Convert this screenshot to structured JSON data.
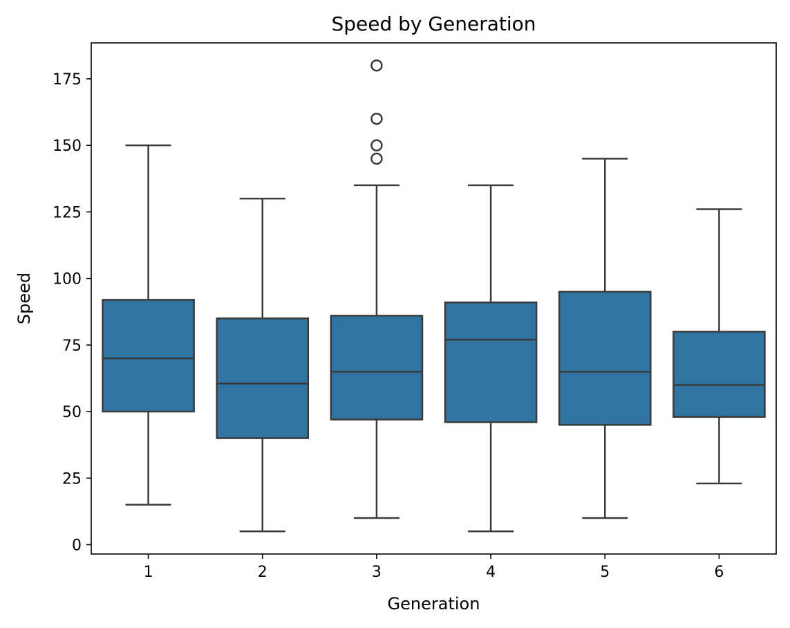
{
  "chart_data": {
    "type": "box",
    "title": "Speed by Generation",
    "xlabel": "Generation",
    "ylabel": "Speed",
    "categories": [
      "1",
      "2",
      "3",
      "4",
      "5",
      "6"
    ],
    "ylim": [
      -3.5,
      188.5
    ],
    "yticks": [
      0,
      25,
      50,
      75,
      100,
      125,
      150,
      175
    ],
    "boxes": [
      {
        "category": "1",
        "whisker_low": 15,
        "q1": 50,
        "median": 70,
        "q3": 92,
        "whisker_high": 150,
        "fliers": []
      },
      {
        "category": "2",
        "whisker_low": 5,
        "q1": 40,
        "median": 60.5,
        "q3": 85,
        "whisker_high": 130,
        "fliers": []
      },
      {
        "category": "3",
        "whisker_low": 10,
        "q1": 47,
        "median": 65,
        "q3": 86,
        "whisker_high": 135,
        "fliers": [
          145,
          150,
          160,
          180
        ]
      },
      {
        "category": "4",
        "whisker_low": 5,
        "q1": 46,
        "median": 77,
        "q3": 91,
        "whisker_high": 135,
        "fliers": []
      },
      {
        "category": "5",
        "whisker_low": 10,
        "q1": 45,
        "median": 65,
        "q3": 95,
        "whisker_high": 145,
        "fliers": []
      },
      {
        "category": "6",
        "whisker_low": 23,
        "q1": 48,
        "median": 60,
        "q3": 80,
        "whisker_high": 126,
        "fliers": []
      }
    ],
    "box_color": "#3274a1",
    "line_color": "#3a3a3a",
    "grid": false,
    "legend": "none"
  }
}
